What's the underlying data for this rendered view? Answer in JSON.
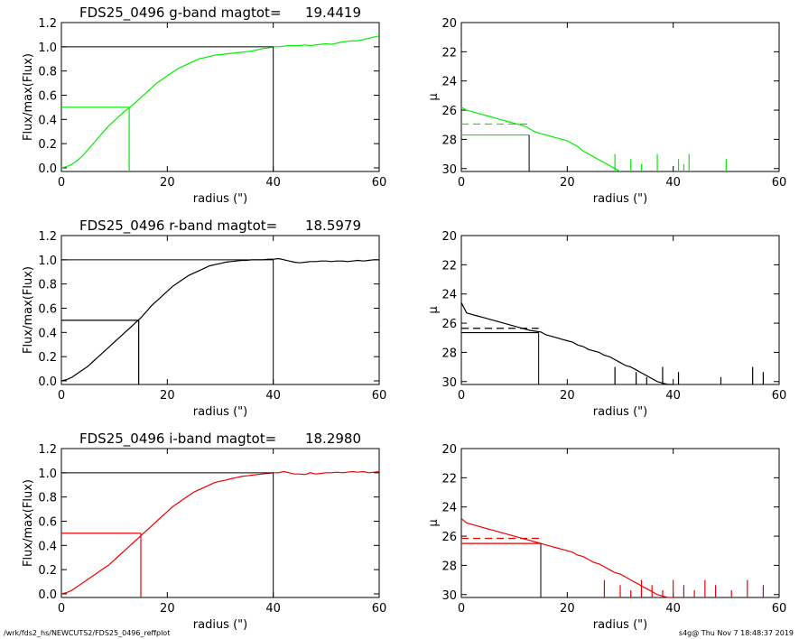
{
  "footer": {
    "left": "/wrk/fds2_hs/NEWCUTS2/FDS25_0496_reffplot",
    "right": "s4g@  Thu Nov  7 18:48:37 2019"
  },
  "chart_data": [
    {
      "type": "line",
      "title_prefix": "FDS25_0496 g-band  magtot=",
      "title_value": "19.4419",
      "xlabel": "radius (\")",
      "ylabel": "Flux/max(Flux)",
      "xlim": [
        0,
        60
      ],
      "ylim": [
        -0.03,
        1.2
      ],
      "xticks": [
        0,
        20,
        40,
        60
      ],
      "yticks": [
        "0.0",
        "0.2",
        "0.4",
        "0.6",
        "0.8",
        "1.0",
        "1.2"
      ],
      "color": "#00ee00",
      "series": [
        {
          "x": [
            0,
            1,
            2,
            3,
            4,
            5,
            6,
            7,
            8,
            9,
            10,
            11,
            12,
            13,
            14,
            15,
            16,
            17,
            18,
            19,
            20,
            21,
            22,
            23,
            24,
            25,
            26,
            27,
            28,
            29,
            30,
            31,
            32,
            33,
            34,
            35,
            36,
            37,
            38,
            39,
            40,
            41,
            42,
            43,
            44,
            45,
            46,
            47,
            48,
            49,
            50,
            51,
            52,
            53,
            54,
            55,
            56,
            57,
            58,
            59,
            60
          ],
          "y": [
            0.0,
            0.01,
            0.03,
            0.06,
            0.1,
            0.15,
            0.2,
            0.25,
            0.3,
            0.35,
            0.39,
            0.43,
            0.47,
            0.5,
            0.54,
            0.58,
            0.62,
            0.66,
            0.7,
            0.73,
            0.76,
            0.79,
            0.82,
            0.84,
            0.86,
            0.88,
            0.9,
            0.91,
            0.92,
            0.93,
            0.935,
            0.94,
            0.945,
            0.95,
            0.955,
            0.96,
            0.965,
            0.975,
            0.985,
            0.99,
            1.0,
            1.0,
            1.005,
            1.01,
            1.01,
            1.01,
            1.015,
            1.01,
            1.015,
            1.02,
            1.025,
            1.02,
            1.03,
            1.04,
            1.045,
            1.05,
            1.05,
            1.06,
            1.07,
            1.08,
            1.09
          ]
        }
      ],
      "reference_lines": {
        "total_radius": 40,
        "half_radius": 12.8,
        "half_level": 0.5,
        "total_level": 1.0
      }
    },
    {
      "type": "line",
      "ylabel": "μ",
      "xlabel": "radius (\")",
      "xlim": [
        0,
        60
      ],
      "ylim": [
        30.2,
        20
      ],
      "xticks": [
        0,
        20,
        40,
        60
      ],
      "yticks": [
        "20",
        "22",
        "24",
        "26",
        "28",
        "30"
      ],
      "color": "#00ee00",
      "series": [
        {
          "x": [
            0,
            1,
            2,
            3,
            4,
            5,
            6,
            7,
            8,
            9,
            10,
            11,
            12,
            13,
            14,
            15,
            16,
            17,
            18,
            19,
            20,
            21,
            22,
            23,
            24,
            25,
            26,
            27,
            28,
            29,
            30
          ],
          "y": [
            25.8,
            26.0,
            26.1,
            26.2,
            26.3,
            26.4,
            26.5,
            26.6,
            26.7,
            26.8,
            26.9,
            27.0,
            27.1,
            27.3,
            27.5,
            27.6,
            27.7,
            27.8,
            27.9,
            28.0,
            28.1,
            28.3,
            28.5,
            28.8,
            29.0,
            29.2,
            29.4,
            29.6,
            29.8,
            30.0,
            30.2
          ]
        }
      ],
      "noise_spikes_x": [
        29,
        32,
        34,
        37,
        41,
        42,
        43,
        50
      ],
      "reference_lines": {
        "half_radius": 12.8,
        "solid_level": 27.7,
        "dashed_level": 26.95
      }
    },
    {
      "type": "line",
      "title_prefix": "FDS25_0496 r-band  magtot=",
      "title_value": "18.5979",
      "xlabel": "radius (\")",
      "ylabel": "Flux/max(Flux)",
      "xlim": [
        0,
        60
      ],
      "ylim": [
        -0.03,
        1.2
      ],
      "xticks": [
        0,
        20,
        40,
        60
      ],
      "yticks": [
        "0.0",
        "0.2",
        "0.4",
        "0.6",
        "0.8",
        "1.0",
        "1.2"
      ],
      "color": "#000000",
      "series": [
        {
          "x": [
            0,
            1,
            2,
            3,
            4,
            5,
            6,
            7,
            8,
            9,
            10,
            11,
            12,
            13,
            14,
            15,
            16,
            17,
            18,
            19,
            20,
            21,
            22,
            23,
            24,
            25,
            26,
            27,
            28,
            29,
            30,
            31,
            32,
            33,
            34,
            35,
            36,
            37,
            38,
            39,
            40,
            41,
            42,
            43,
            44,
            45,
            46,
            47,
            48,
            49,
            50,
            51,
            52,
            53,
            54,
            55,
            56,
            57,
            58,
            59,
            60
          ],
          "y": [
            0.0,
            0.01,
            0.03,
            0.06,
            0.09,
            0.12,
            0.16,
            0.2,
            0.24,
            0.28,
            0.32,
            0.36,
            0.4,
            0.44,
            0.48,
            0.52,
            0.57,
            0.62,
            0.66,
            0.7,
            0.74,
            0.78,
            0.81,
            0.84,
            0.87,
            0.89,
            0.91,
            0.93,
            0.95,
            0.96,
            0.97,
            0.98,
            0.985,
            0.99,
            0.995,
            0.995,
            1.0,
            1.0,
            1.0,
            1.005,
            1.005,
            1.01,
            1.0,
            0.99,
            0.98,
            0.975,
            0.98,
            0.985,
            0.985,
            0.99,
            0.99,
            0.985,
            0.99,
            0.99,
            0.985,
            0.99,
            0.995,
            0.99,
            0.995,
            1.0,
            1.0
          ]
        }
      ],
      "reference_lines": {
        "total_radius": 40,
        "half_radius": 14.6,
        "half_level": 0.5,
        "total_level": 1.0
      }
    },
    {
      "type": "line",
      "ylabel": "μ",
      "xlabel": "radius (\")",
      "xlim": [
        0,
        60
      ],
      "ylim": [
        30.2,
        20
      ],
      "xticks": [
        0,
        20,
        40,
        60
      ],
      "yticks": [
        "20",
        "22",
        "24",
        "26",
        "28",
        "30"
      ],
      "color": "#000000",
      "series": [
        {
          "x": [
            0,
            1,
            2,
            3,
            4,
            5,
            6,
            7,
            8,
            9,
            10,
            11,
            12,
            13,
            14,
            15,
            16,
            17,
            18,
            19,
            20,
            21,
            22,
            23,
            24,
            25,
            26,
            27,
            28,
            29,
            30,
            31,
            32,
            33,
            34,
            35,
            36,
            37,
            38,
            39,
            40
          ],
          "y": [
            24.6,
            25.3,
            25.4,
            25.5,
            25.6,
            25.7,
            25.8,
            25.9,
            26.0,
            26.1,
            26.2,
            26.3,
            26.4,
            26.5,
            26.55,
            26.6,
            26.8,
            26.9,
            27.0,
            27.1,
            27.2,
            27.3,
            27.5,
            27.6,
            27.8,
            27.9,
            28.0,
            28.2,
            28.3,
            28.5,
            28.7,
            28.9,
            29.0,
            29.2,
            29.4,
            29.6,
            29.8,
            30.0,
            30.1,
            30.2,
            30.2
          ]
        }
      ],
      "noise_spikes_x": [
        29,
        33,
        35,
        38,
        41,
        49,
        55,
        57
      ],
      "reference_lines": {
        "half_radius": 14.6,
        "solid_level": 26.65,
        "dashed_level": 26.35
      }
    },
    {
      "type": "line",
      "title_prefix": "FDS25_0496 i-band  magtot=",
      "title_value": "18.2980",
      "xlabel": "radius (\")",
      "ylabel": "Flux/max(Flux)",
      "xlim": [
        0,
        60
      ],
      "ylim": [
        -0.03,
        1.2
      ],
      "xticks": [
        0,
        20,
        40,
        60
      ],
      "yticks": [
        "0.0",
        "0.2",
        "0.4",
        "0.6",
        "0.8",
        "1.0",
        "1.2"
      ],
      "color": "#ee0000",
      "series": [
        {
          "x": [
            0,
            1,
            2,
            3,
            4,
            5,
            6,
            7,
            8,
            9,
            10,
            11,
            12,
            13,
            14,
            15,
            16,
            17,
            18,
            19,
            20,
            21,
            22,
            23,
            24,
            25,
            26,
            27,
            28,
            29,
            30,
            31,
            32,
            33,
            34,
            35,
            36,
            37,
            38,
            39,
            40,
            41,
            42,
            43,
            44,
            45,
            46,
            47,
            48,
            49,
            50,
            51,
            52,
            53,
            54,
            55,
            56,
            57,
            58,
            59,
            60
          ],
          "y": [
            0.0,
            0.01,
            0.03,
            0.06,
            0.09,
            0.12,
            0.15,
            0.18,
            0.21,
            0.24,
            0.28,
            0.32,
            0.36,
            0.4,
            0.44,
            0.48,
            0.52,
            0.56,
            0.6,
            0.64,
            0.68,
            0.72,
            0.75,
            0.78,
            0.81,
            0.84,
            0.86,
            0.88,
            0.9,
            0.92,
            0.93,
            0.94,
            0.95,
            0.96,
            0.97,
            0.975,
            0.98,
            0.985,
            0.99,
            0.995,
            1.0,
            1.0,
            1.01,
            1.0,
            0.99,
            0.99,
            0.985,
            1.0,
            0.99,
            0.995,
            1.0,
            1.0,
            1.005,
            1.0,
            1.005,
            1.01,
            1.005,
            1.01,
            1.0,
            1.005,
            1.01
          ]
        }
      ],
      "reference_lines": {
        "total_radius": 40,
        "half_radius": 15,
        "half_level": 0.5,
        "total_level": 1.0
      }
    },
    {
      "type": "line",
      "ylabel": "μ",
      "xlabel": "radius (\")",
      "xlim": [
        0,
        60
      ],
      "ylim": [
        30.2,
        20
      ],
      "xticks": [
        0,
        20,
        40,
        60
      ],
      "yticks": [
        "20",
        "22",
        "24",
        "26",
        "28",
        "30"
      ],
      "color": "#ee0000",
      "series": [
        {
          "x": [
            0,
            1,
            2,
            3,
            4,
            5,
            6,
            7,
            8,
            9,
            10,
            11,
            12,
            13,
            14,
            15,
            16,
            17,
            18,
            19,
            20,
            21,
            22,
            23,
            24,
            25,
            26,
            27,
            28,
            29,
            30,
            31,
            32,
            33,
            34,
            35,
            36,
            37,
            38,
            39,
            40
          ],
          "y": [
            24.8,
            25.1,
            25.2,
            25.3,
            25.4,
            25.5,
            25.6,
            25.7,
            25.8,
            25.9,
            26.0,
            26.1,
            26.2,
            26.3,
            26.4,
            26.5,
            26.6,
            26.7,
            26.8,
            26.9,
            27.0,
            27.1,
            27.3,
            27.4,
            27.6,
            27.8,
            27.9,
            28.1,
            28.3,
            28.5,
            28.6,
            28.8,
            29.0,
            29.2,
            29.4,
            29.6,
            29.8,
            30.0,
            30.1,
            30.2,
            30.2
          ]
        }
      ],
      "noise_spikes_x": [
        27,
        30,
        32,
        34,
        36,
        38,
        40,
        42,
        44,
        46,
        48,
        51,
        54,
        57
      ],
      "reference_lines": {
        "half_radius": 15,
        "solid_level": 26.5,
        "dashed_level": 26.15
      }
    }
  ]
}
